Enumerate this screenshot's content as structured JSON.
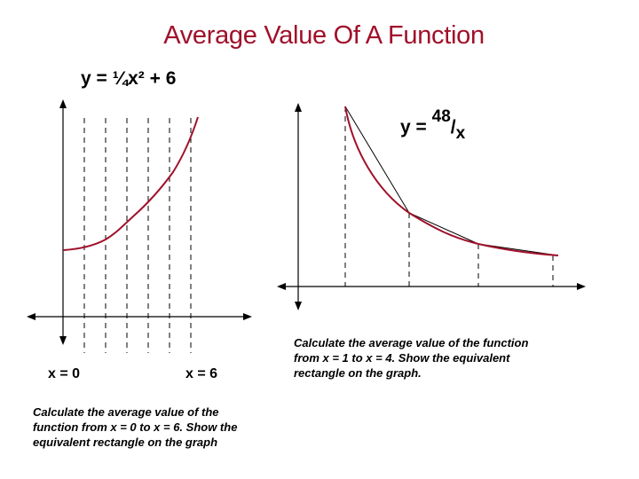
{
  "slide": {
    "title": "Average Value Of A Function"
  },
  "left_panel": {
    "equation": "y = ¼x² + 6",
    "x_start_label": "x = 0",
    "x_end_label": "x = 6",
    "instruction": [
      "Calculate the average value of the",
      "function from x = 0 to x = 6. Show the",
      "equivalent rectangle on the graph"
    ]
  },
  "right_panel": {
    "equation_prefix": "y = ",
    "equation_numerator": "48",
    "equation_slash": "/",
    "equation_denominator": "x",
    "instruction": [
      "Calculate the average value of the function",
      "from x = 1 to x = 4. Show the equivalent",
      "rectangle on the graph."
    ]
  },
  "colors": {
    "title": "#a0102a",
    "curve": "#a0102a",
    "axes": "#000000"
  }
}
